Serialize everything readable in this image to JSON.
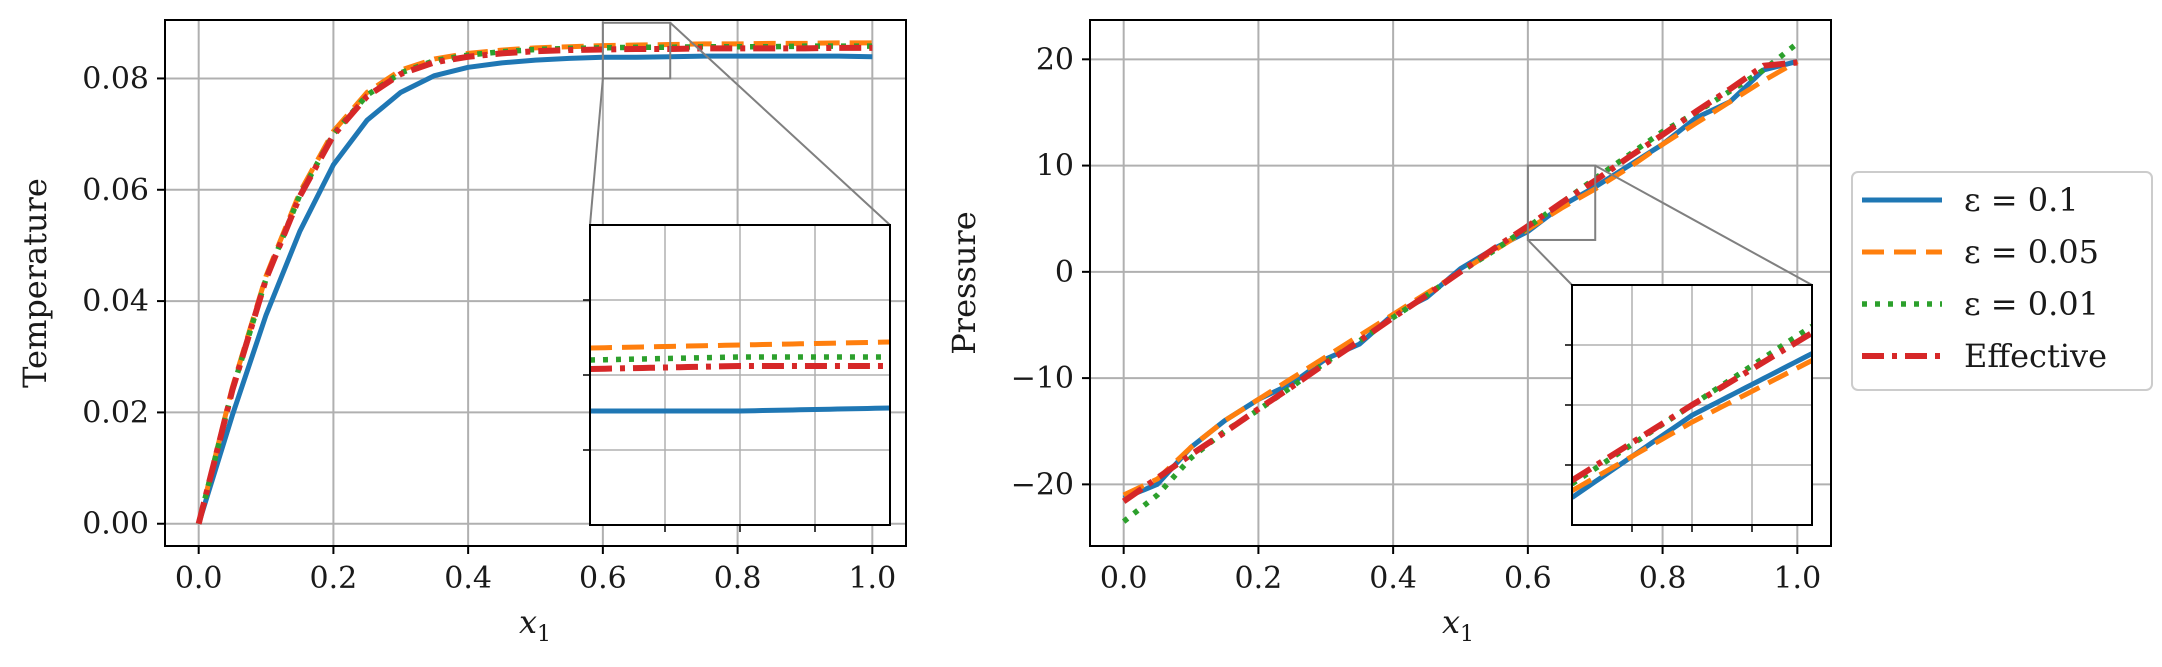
{
  "chart_data": [
    {
      "type": "line",
      "ylabel": "Temperature",
      "xlabel": "x",
      "xlabel_subscript": "1",
      "xlim": [
        -0.05,
        1.05
      ],
      "ylim": [
        -0.004,
        0.0905
      ],
      "xticks": [
        "0.0",
        "0.2",
        "0.4",
        "0.6",
        "0.8",
        "1.0"
      ],
      "yticks": [
        "0.00",
        "0.02",
        "0.04",
        "0.06",
        "0.08"
      ],
      "grid": true,
      "x": [
        0,
        0.05,
        0.1,
        0.15,
        0.2,
        0.25,
        0.3,
        0.35,
        0.4,
        0.45,
        0.5,
        0.55,
        0.6,
        0.65,
        0.7,
        0.75,
        0.8,
        0.85,
        0.9,
        0.95,
        1.0
      ],
      "series": [
        {
          "name": "ε = 0.1",
          "values": [
            0,
            0.0195,
            0.0375,
            0.0525,
            0.0645,
            0.0725,
            0.0775,
            0.0805,
            0.082,
            0.0828,
            0.0833,
            0.0836,
            0.0838,
            0.0838,
            0.0839,
            0.084,
            0.084,
            0.084,
            0.084,
            0.084,
            0.0839
          ]
        },
        {
          "name": "ε = 0.05",
          "values": [
            0,
            0.0245,
            0.0445,
            0.0595,
            0.0705,
            0.0775,
            0.0815,
            0.0835,
            0.0845,
            0.0851,
            0.0855,
            0.0857,
            0.0859,
            0.086,
            0.0861,
            0.0862,
            0.0862,
            0.0863,
            0.0863,
            0.0864,
            0.0864
          ]
        },
        {
          "name": "ε = 0.01",
          "values": [
            0,
            0.024,
            0.044,
            0.059,
            0.07,
            0.077,
            0.081,
            0.0832,
            0.0842,
            0.0848,
            0.0852,
            0.0854,
            0.0855,
            0.0856,
            0.0856,
            0.0857,
            0.0857,
            0.0857,
            0.0858,
            0.0858,
            0.0858
          ]
        },
        {
          "name": "Effective",
          "values": [
            0,
            0.024,
            0.044,
            0.0588,
            0.0698,
            0.0768,
            0.0808,
            0.0829,
            0.0839,
            0.0845,
            0.0849,
            0.0851,
            0.0852,
            0.0853,
            0.0853,
            0.0854,
            0.0854,
            0.0854,
            0.0854,
            0.0855,
            0.0855
          ]
        }
      ],
      "inset": {
        "xlim": [
          0.6,
          0.7
        ],
        "ylim": [
          0.08,
          0.09
        ]
      }
    },
    {
      "type": "line",
      "ylabel": "Pressure",
      "xlabel": "x",
      "xlabel_subscript": "1",
      "xlim": [
        -0.05,
        1.05
      ],
      "ylim": [
        -25.8,
        23.7
      ],
      "xticks": [
        "0.0",
        "0.2",
        "0.4",
        "0.6",
        "0.8",
        "1.0"
      ],
      "yticks": [
        "20",
        "10",
        "0",
        "−10",
        "−20"
      ],
      "ytick_values": [
        20,
        10,
        0,
        -10,
        -20
      ],
      "grid": true,
      "x": [
        0,
        0.05,
        0.1,
        0.15,
        0.2,
        0.25,
        0.3,
        0.35,
        0.4,
        0.45,
        0.5,
        0.55,
        0.6,
        0.65,
        0.7,
        0.75,
        0.8,
        0.85,
        0.9,
        0.95,
        1.0
      ],
      "series": [
        {
          "name": "ε = 0.1",
          "values": [
            -21.3,
            -20.0,
            -16.5,
            -14.0,
            -12.0,
            -10.5,
            -8.2,
            -6.8,
            -4.0,
            -2.4,
            0.3,
            2.2,
            3.8,
            6.2,
            8.0,
            10.0,
            12.0,
            14.5,
            16.0,
            19.0,
            19.8
          ]
        },
        {
          "name": "ε = 0.05",
          "values": [
            -21.0,
            -19.5,
            -16.5,
            -14.0,
            -12.0,
            -10.0,
            -8.0,
            -6.0,
            -4.0,
            -2.0,
            0.0,
            2.0,
            4.0,
            6.0,
            7.8,
            9.8,
            12.0,
            14.0,
            16.0,
            18.0,
            19.8
          ]
        },
        {
          "name": "ε = 0.01",
          "values": [
            -23.5,
            -21.0,
            -17.5,
            -15.0,
            -13.0,
            -10.8,
            -8.5,
            -6.5,
            -4.3,
            -2.2,
            0.0,
            2.0,
            4.2,
            6.5,
            8.8,
            11.0,
            13.2,
            15.0,
            17.0,
            19.0,
            21.5
          ]
        },
        {
          "name": "Effective",
          "values": [
            -21.6,
            -19.4,
            -17.2,
            -15.1,
            -12.9,
            -10.8,
            -8.6,
            -6.5,
            -4.3,
            -2.2,
            0.0,
            2.2,
            4.3,
            6.5,
            8.6,
            10.8,
            12.9,
            15.1,
            17.2,
            19.4,
            19.7
          ]
        }
      ],
      "inset": {
        "xlim": [
          0.6,
          0.7
        ],
        "ylim": [
          3,
          10
        ]
      }
    }
  ],
  "legend": {
    "placement": "right",
    "entries": [
      "ε = 0.1",
      "ε = 0.05",
      "ε = 0.01",
      "Effective"
    ]
  },
  "colors": {
    "series": [
      "#1f77b4",
      "#ff7f0e",
      "#2ca02c",
      "#d62728"
    ],
    "grid": "#b0b0b0",
    "zoom": "#808080"
  }
}
